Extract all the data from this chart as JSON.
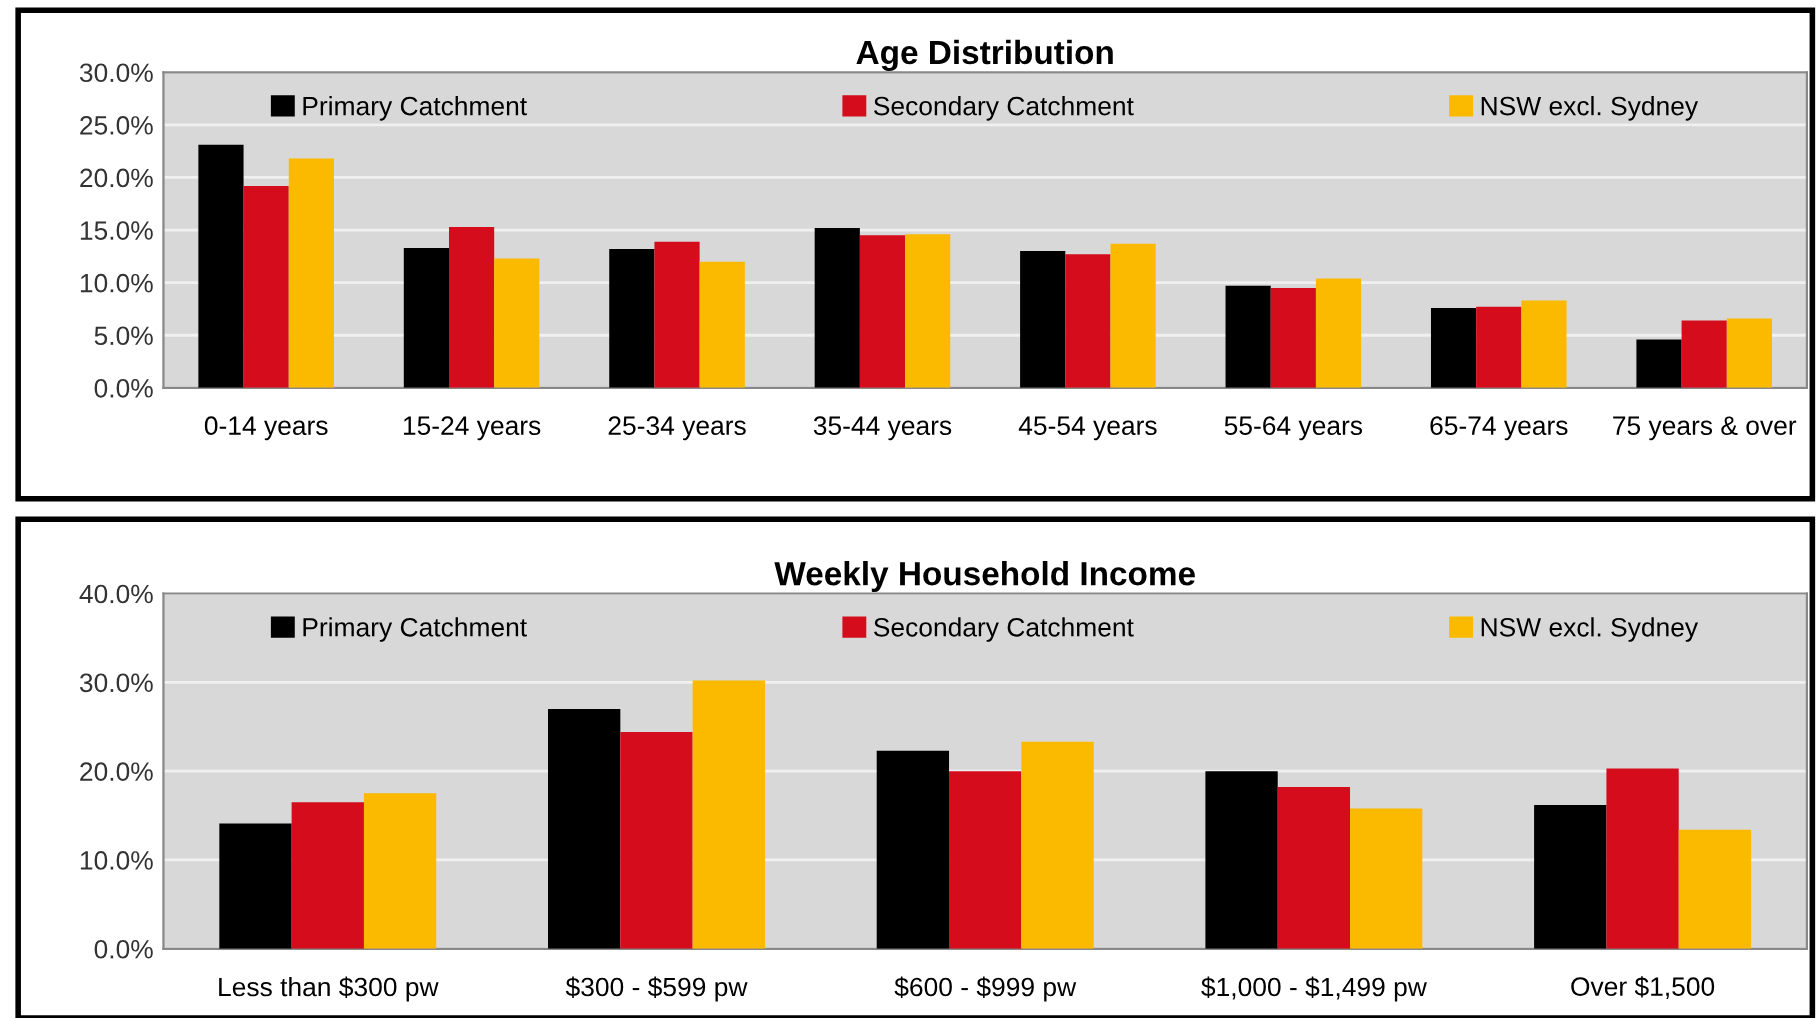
{
  "chart_data": [
    {
      "type": "bar",
      "title": "Age Distribution",
      "categories": [
        "0-14 years",
        "15-24 years",
        "25-34 years",
        "35-44 years",
        "45-54 years",
        "55-64 years",
        "65-74 years",
        "75 years & over"
      ],
      "series": [
        {
          "name": "Primary Catchment",
          "color": "#000000",
          "values": [
            23.1,
            13.3,
            13.2,
            15.2,
            13.0,
            9.7,
            7.6,
            4.6
          ]
        },
        {
          "name": "Secondary Catchment",
          "color": "#d40c1c",
          "values": [
            19.2,
            15.3,
            13.9,
            14.5,
            12.7,
            9.5,
            7.7,
            6.4
          ]
        },
        {
          "name": "NSW excl. Sydney",
          "color": "#fbb900",
          "values": [
            21.8,
            12.3,
            12.0,
            14.6,
            13.7,
            10.4,
            8.3,
            6.6
          ]
        }
      ],
      "ylim": [
        0,
        30
      ],
      "yticks": [
        {
          "value": 0,
          "label": "0.0%"
        },
        {
          "value": 5,
          "label": "5.0%"
        },
        {
          "value": 10,
          "label": "10.0%"
        },
        {
          "value": 15,
          "label": "15.0%"
        },
        {
          "value": 20,
          "label": "20.0%"
        },
        {
          "value": 25,
          "label": "25.0%"
        },
        {
          "value": 30,
          "label": "30.0%"
        }
      ],
      "grid": "y",
      "legend": "top"
    },
    {
      "type": "bar",
      "title": "Weekly Household Income",
      "categories": [
        "Less than $300 pw",
        "$300 - $599 pw",
        "$600 - $999 pw",
        "$1,000 - $1,499 pw",
        "Over $1,500"
      ],
      "series": [
        {
          "name": "Primary Catchment",
          "color": "#000000",
          "values": [
            14.1,
            27.0,
            22.3,
            20.0,
            16.2
          ]
        },
        {
          "name": "Secondary Catchment",
          "color": "#d40c1c",
          "values": [
            16.5,
            24.4,
            20.0,
            18.2,
            20.3
          ]
        },
        {
          "name": "NSW excl. Sydney",
          "color": "#fbb900",
          "values": [
            17.5,
            30.2,
            23.3,
            15.8,
            13.4
          ]
        }
      ],
      "ylim": [
        0,
        40
      ],
      "yticks": [
        {
          "value": 0,
          "label": "0.0%"
        },
        {
          "value": 10,
          "label": "10.0%"
        },
        {
          "value": 20,
          "label": "20.0%"
        },
        {
          "value": 30,
          "label": "30.0%"
        },
        {
          "value": 40,
          "label": "40.0%"
        }
      ],
      "grid": "y",
      "legend": "top"
    }
  ]
}
